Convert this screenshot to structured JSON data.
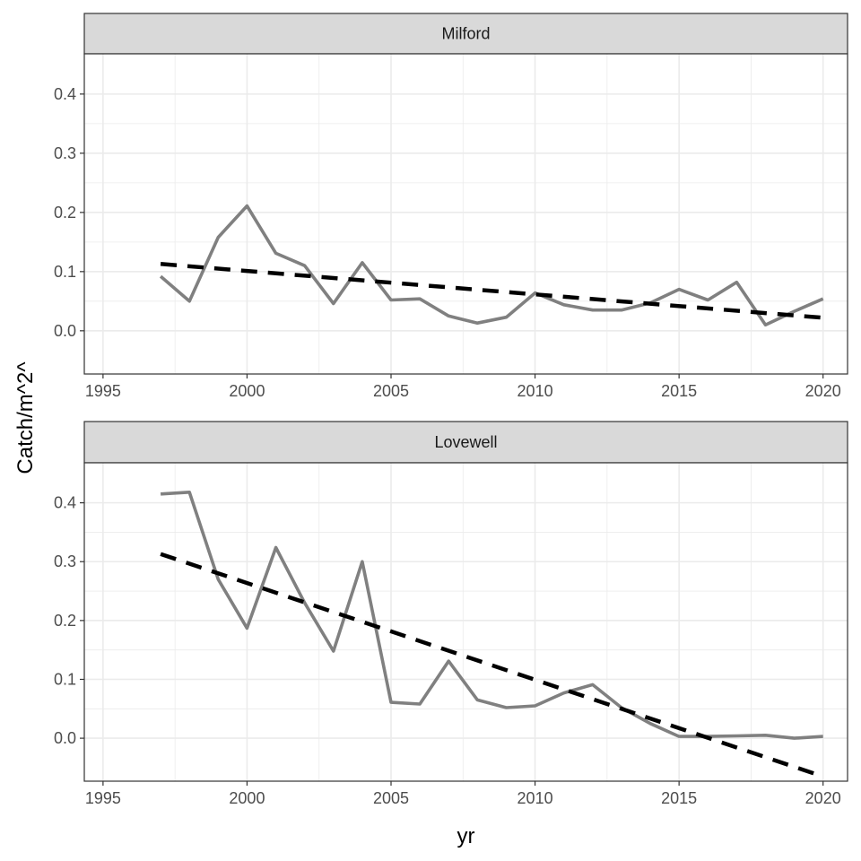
{
  "chart_data": {
    "type": "line",
    "xlabel": "yr",
    "ylabel": "Catch/m^2^",
    "xlim": [
      1994.35,
      2020.85
    ],
    "x_ticks": [
      "1995",
      "2000",
      "2005",
      "2010",
      "2015",
      "2020"
    ],
    "y_ticks": [
      "0.0",
      "0.1",
      "0.2",
      "0.3",
      "0.4"
    ],
    "grid": true,
    "colors": {
      "observed": "#808080",
      "trend": "#000000",
      "strip_bg": "#d9d9d9",
      "grid": "#ebebeb",
      "panel_border": "#333333"
    },
    "panels": [
      {
        "label": "Milford",
        "ylim": [
          -0.073,
          0.468
        ],
        "series": [
          {
            "style": "solid",
            "x": [
              1997,
              1998,
              1999,
              2000,
              2001,
              2002,
              2003,
              2004,
              2005,
              2006,
              2007,
              2008,
              2009,
              2010,
              2011,
              2012,
              2013,
              2014,
              2015,
              2016,
              2017,
              2018,
              2019,
              2020
            ],
            "y": [
              0.092,
              0.05,
              0.158,
              0.211,
              0.131,
              0.11,
              0.046,
              0.115,
              0.052,
              0.054,
              0.025,
              0.013,
              0.023,
              0.064,
              0.044,
              0.035,
              0.035,
              0.047,
              0.07,
              0.052,
              0.082,
              0.01,
              0.033,
              0.054
            ]
          },
          {
            "style": "dashed",
            "x": [
              1997,
              2020
            ],
            "y": [
              0.113,
              0.022
            ]
          }
        ]
      },
      {
        "label": "Lovewell",
        "ylim": [
          -0.073,
          0.468
        ],
        "series": [
          {
            "style": "solid",
            "x": [
              1997,
              1998,
              1999,
              2000,
              2001,
              2002,
              2003,
              2004,
              2005,
              2006,
              2007,
              2008,
              2009,
              2010,
              2011,
              2012,
              2013,
              2014,
              2015,
              2016,
              2017,
              2018,
              2019,
              2020
            ],
            "y": [
              0.415,
              0.418,
              0.27,
              0.187,
              0.324,
              0.23,
              0.148,
              0.3,
              0.061,
              0.058,
              0.131,
              0.065,
              0.052,
              0.055,
              0.077,
              0.091,
              0.052,
              0.025,
              0.003,
              0.003,
              0.004,
              0.005,
              0.0,
              0.003
            ]
          },
          {
            "style": "dashed",
            "x": [
              1997,
              2020
            ],
            "y": [
              0.313,
              -0.065
            ]
          }
        ]
      }
    ]
  }
}
